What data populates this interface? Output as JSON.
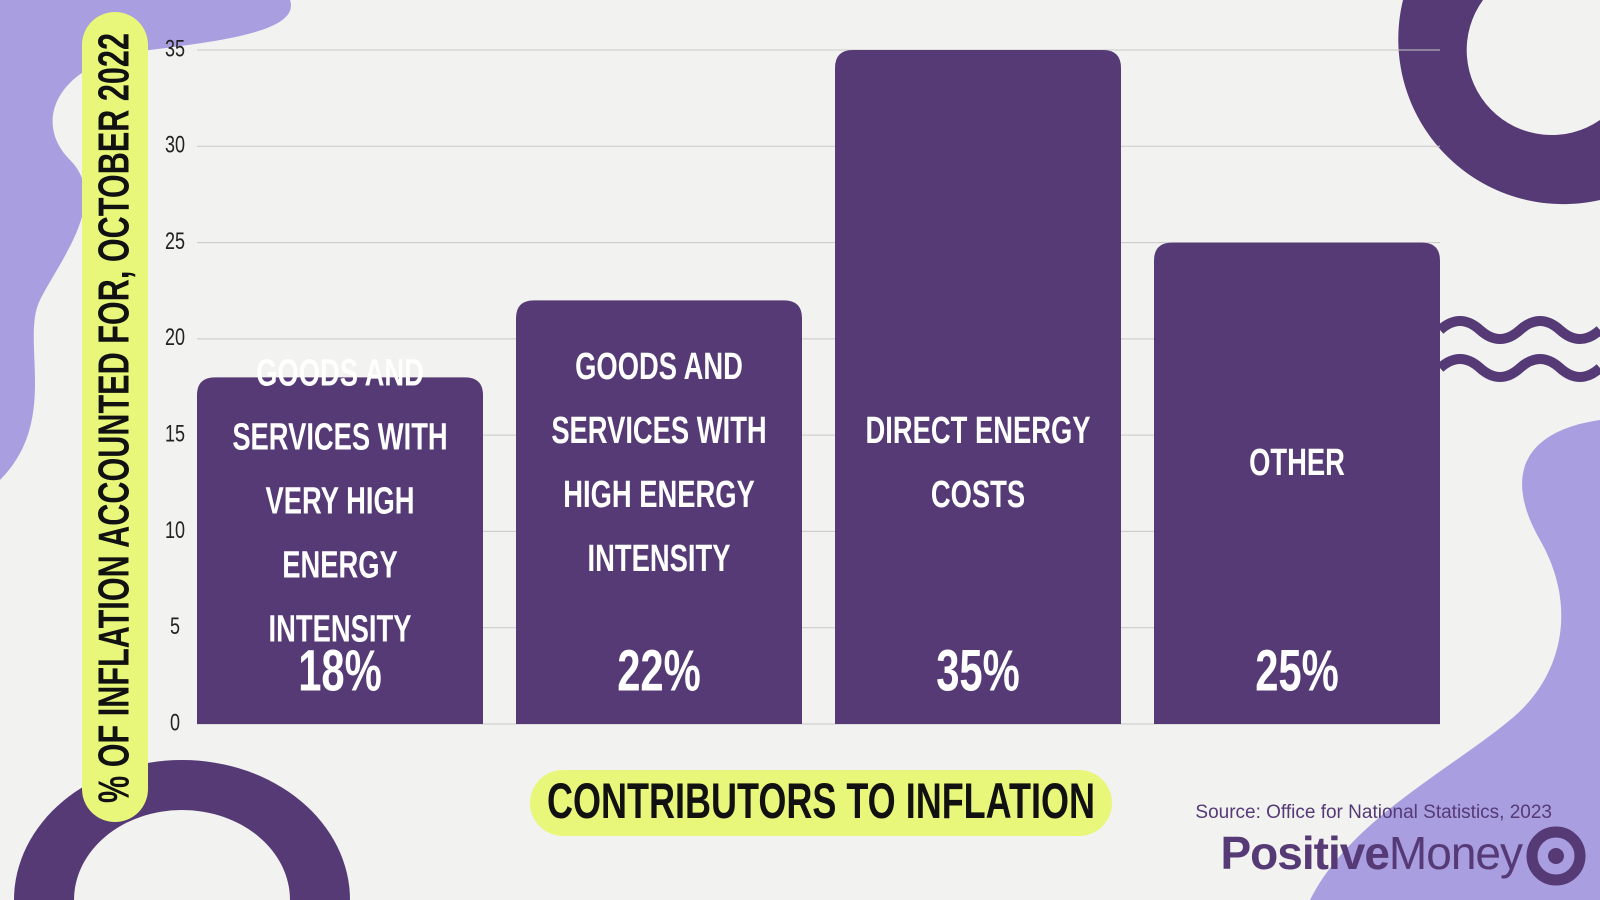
{
  "chart_data": {
    "type": "bar",
    "title": "CONTRIBUTORS TO INFLATION",
    "y_axis_label": "% OF INFLATION  ACCOUNTED FOR, OCTOBER 2022",
    "categories": [
      "GOODS AND SERVICES WITH VERY HIGH ENERGY INTENSITY",
      "GOODS AND SERVICES WITH HIGH ENERGY INTENSITY",
      "DIRECT ENERGY COSTS",
      "OTHER"
    ],
    "values": [
      18,
      22,
      35,
      25
    ],
    "value_labels": [
      "18%",
      "22%",
      "35%",
      "25%"
    ],
    "color": "#553a75",
    "ylim": [
      0,
      35
    ],
    "yticks": [
      0,
      5,
      10,
      15,
      20,
      25,
      30,
      35
    ],
    "grid": true,
    "source": "Source: Office for National Statistics, 2023",
    "logo": [
      "Positive",
      "Money"
    ]
  }
}
